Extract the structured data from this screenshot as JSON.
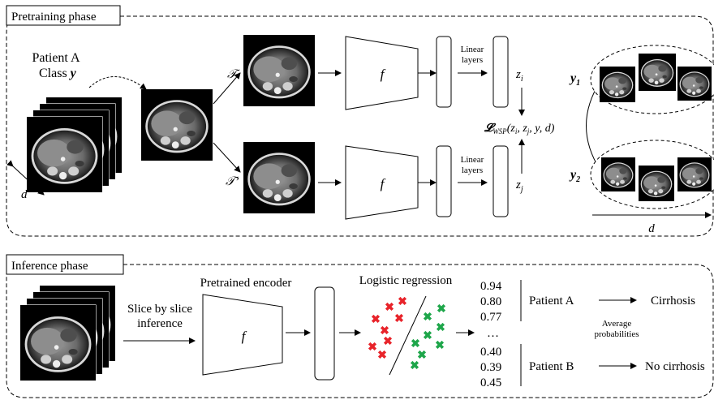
{
  "pretraining": {
    "label": "Pretraining phase",
    "patient_label": "Patient A",
    "class_label": "Class y",
    "depth_label": "d",
    "transform_1": "𝒯",
    "transform_2": "𝒯’",
    "encoder": "f",
    "linear_1": "Linear layers",
    "linear_2": "Linear layers",
    "z_i": "z",
    "z_i_sub": "i",
    "z_j": "z",
    "z_j_sub": "j",
    "loss": "𝓛",
    "loss_sub": "WSP",
    "loss_args": "(z",
    "loss_args_i": "i",
    "loss_args_mid": ", z",
    "loss_args_j": "j",
    "loss_args_end": ", y, d)",
    "y1": "y",
    "y1_sub": "1",
    "y2": "y",
    "y2_sub": "2",
    "d_axis": "d"
  },
  "inference": {
    "label": "Inference phase",
    "slice_label_1": "Slice by slice",
    "slice_label_2": "inference",
    "encoder_title": "Pretrained encoder",
    "encoder": "f",
    "logreg_title": "Logistic regression",
    "probs_a": [
      "0.94",
      "0.80",
      "0.77"
    ],
    "ellipsis": "…",
    "probs_b": [
      "0.40",
      "0.39",
      "0.45"
    ],
    "patient_a": "Patient A",
    "patient_b": "Patient B",
    "avg_1": "Average",
    "avg_2": "probabilities",
    "outcome_a": "Cirrhosis",
    "outcome_b": "No cirrhosis"
  },
  "colors": {
    "positive": "#e8232a",
    "negative": "#1ea64a"
  }
}
